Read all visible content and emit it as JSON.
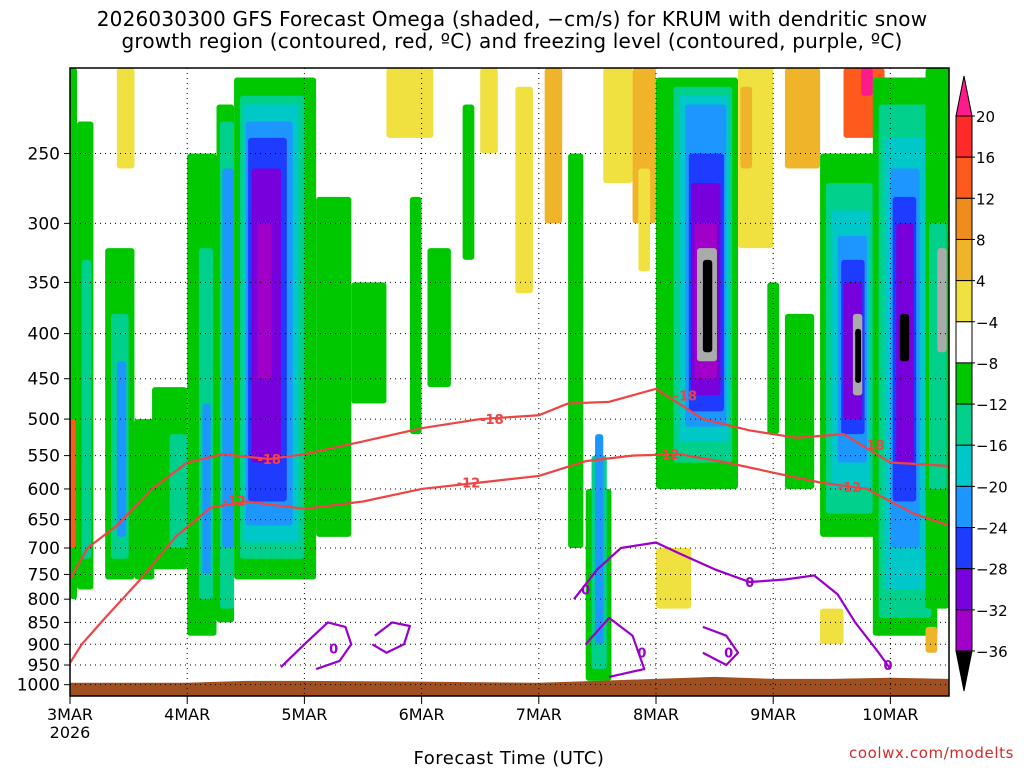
{
  "header": {
    "title_line1": "2026030300 GFS Forecast Omega (shaded, −cm/s) for KRUM with dendritic snow",
    "title_line2": "growth region (contoured, red, ºC) and freezing level (contoured, purple, ºC)"
  },
  "footer": {
    "credit": "coolwx.com/modelts"
  },
  "chart_data": {
    "type": "heatmap",
    "title": "2026030300 GFS Forecast Omega (shaded, −cm/s) for KRUM with dendritic snow growth region (contoured, red, ºC) and freezing level (contoured, purple, ºC)",
    "xlabel": "Forecast Time (UTC)",
    "ylabel": "",
    "x_range_days": [
      3.0,
      10.5
    ],
    "x_ticks": [
      {
        "day": 3,
        "label": "3MAR",
        "sublabel": "2026"
      },
      {
        "day": 4,
        "label": "4MAR"
      },
      {
        "day": 5,
        "label": "5MAR"
      },
      {
        "day": 6,
        "label": "6MAR"
      },
      {
        "day": 7,
        "label": "7MAR"
      },
      {
        "day": 8,
        "label": "8MAR"
      },
      {
        "day": 9,
        "label": "9MAR"
      },
      {
        "day": 10,
        "label": "10MAR"
      }
    ],
    "y_scale": "log-pressure (hPa), inverted",
    "y_range_hpa": [
      1030,
      200
    ],
    "y_ticks": [
      250,
      300,
      350,
      400,
      450,
      500,
      550,
      600,
      650,
      700,
      750,
      800,
      850,
      900,
      950,
      1000
    ],
    "grid": "dotted",
    "colorbar": {
      "labels": [
        "20",
        "16",
        "12",
        "8",
        "4",
        "−4",
        "−8",
        "−12",
        "−16",
        "−20",
        "−24",
        "−28",
        "−32",
        "−36"
      ],
      "colors": [
        "#ff1a8c",
        "#ff2a2a",
        "#ff5a1e",
        "#f08c1e",
        "#f0b42a",
        "#f0e040",
        "#ffffff",
        "#00c800",
        "#00d08c",
        "#00c8c8",
        "#1e96ff",
        "#1e3cff",
        "#7800dc",
        "#a000c8",
        "#aaaaaa",
        "#000000"
      ]
    },
    "omega_cells": [
      {
        "t0": 3.0,
        "t1": 3.06,
        "p0": 200,
        "p1": 800,
        "c": "#00c800"
      },
      {
        "t0": 3.0,
        "t1": 3.05,
        "p0": 500,
        "p1": 700,
        "c": "#ff5a1e"
      },
      {
        "t0": 3.06,
        "t1": 3.2,
        "p0": 230,
        "p1": 780,
        "c": "#00c800"
      },
      {
        "t0": 3.1,
        "t1": 3.18,
        "p0": 330,
        "p1": 720,
        "c": "#00d08c"
      },
      {
        "t0": 3.3,
        "t1": 3.55,
        "p0": 320,
        "p1": 760,
        "c": "#00c800"
      },
      {
        "t0": 3.35,
        "t1": 3.5,
        "p0": 380,
        "p1": 720,
        "c": "#00d08c"
      },
      {
        "t0": 3.4,
        "t1": 3.48,
        "p0": 430,
        "p1": 680,
        "c": "#1e96ff"
      },
      {
        "t0": 3.4,
        "t1": 3.55,
        "p0": 200,
        "p1": 260,
        "c": "#f0e040"
      },
      {
        "t0": 3.55,
        "t1": 3.72,
        "p0": 500,
        "p1": 760,
        "c": "#00c800"
      },
      {
        "t0": 3.7,
        "t1": 4.0,
        "p0": 460,
        "p1": 740,
        "c": "#00c800"
      },
      {
        "t0": 3.85,
        "t1": 4.0,
        "p0": 520,
        "p1": 700,
        "c": "#00d08c"
      },
      {
        "t0": 4.0,
        "t1": 4.25,
        "p0": 250,
        "p1": 880,
        "c": "#00c800"
      },
      {
        "t0": 4.1,
        "t1": 4.22,
        "p0": 320,
        "p1": 800,
        "c": "#00d08c"
      },
      {
        "t0": 4.13,
        "t1": 4.2,
        "p0": 480,
        "p1": 750,
        "c": "#1e96ff"
      },
      {
        "t0": 4.25,
        "t1": 4.4,
        "p0": 220,
        "p1": 850,
        "c": "#00c800"
      },
      {
        "t0": 4.28,
        "t1": 4.4,
        "p0": 230,
        "p1": 820,
        "c": "#00d08c"
      },
      {
        "t0": 4.3,
        "t1": 4.4,
        "p0": 260,
        "p1": 700,
        "c": "#1e96ff"
      },
      {
        "t0": 4.4,
        "t1": 5.1,
        "p0": 205,
        "p1": 760,
        "c": "#00c800"
      },
      {
        "t0": 4.45,
        "t1": 5.0,
        "p0": 215,
        "p1": 720,
        "c": "#00d08c"
      },
      {
        "t0": 4.48,
        "t1": 4.95,
        "p0": 220,
        "p1": 690,
        "c": "#00c8c8"
      },
      {
        "t0": 4.5,
        "t1": 4.9,
        "p0": 230,
        "p1": 660,
        "c": "#1e96ff"
      },
      {
        "t0": 4.52,
        "t1": 4.85,
        "p0": 240,
        "p1": 620,
        "c": "#1e3cff"
      },
      {
        "t0": 4.55,
        "t1": 4.8,
        "p0": 260,
        "p1": 560,
        "c": "#7800dc"
      },
      {
        "t0": 4.6,
        "t1": 4.72,
        "p0": 300,
        "p1": 450,
        "c": "#a000c8"
      },
      {
        "t0": 5.1,
        "t1": 5.4,
        "p0": 280,
        "p1": 680,
        "c": "#00c800"
      },
      {
        "t0": 5.4,
        "t1": 5.7,
        "p0": 350,
        "p1": 480,
        "c": "#00c800"
      },
      {
        "t0": 5.7,
        "t1": 6.1,
        "p0": 200,
        "p1": 240,
        "c": "#f0e040"
      },
      {
        "t0": 5.9,
        "t1": 6.0,
        "p0": 280,
        "p1": 520,
        "c": "#00c800"
      },
      {
        "t0": 6.05,
        "t1": 6.25,
        "p0": 320,
        "p1": 460,
        "c": "#00c800"
      },
      {
        "t0": 6.35,
        "t1": 6.45,
        "p0": 220,
        "p1": 330,
        "c": "#00c800"
      },
      {
        "t0": 6.5,
        "t1": 6.65,
        "p0": 200,
        "p1": 250,
        "c": "#f0e040"
      },
      {
        "t0": 6.8,
        "t1": 6.95,
        "p0": 210,
        "p1": 360,
        "c": "#f0e040"
      },
      {
        "t0": 7.05,
        "t1": 7.2,
        "p0": 200,
        "p1": 300,
        "c": "#f0b42a"
      },
      {
        "t0": 7.25,
        "t1": 7.38,
        "p0": 250,
        "p1": 700,
        "c": "#00c800"
      },
      {
        "t0": 7.4,
        "t1": 7.62,
        "p0": 600,
        "p1": 990,
        "c": "#00c800"
      },
      {
        "t0": 7.45,
        "t1": 7.58,
        "p0": 550,
        "p1": 960,
        "c": "#00d08c"
      },
      {
        "t0": 7.48,
        "t1": 7.55,
        "p0": 520,
        "p1": 900,
        "c": "#1e96ff"
      },
      {
        "t0": 7.55,
        "t1": 7.8,
        "p0": 200,
        "p1": 270,
        "c": "#f0e040"
      },
      {
        "t0": 7.8,
        "t1": 8.0,
        "p0": 200,
        "p1": 300,
        "c": "#f0b42a"
      },
      {
        "t0": 7.85,
        "t1": 7.95,
        "p0": 260,
        "p1": 340,
        "c": "#f0e040"
      },
      {
        "t0": 8.0,
        "t1": 8.7,
        "p0": 205,
        "p1": 600,
        "c": "#00c800"
      },
      {
        "t0": 8.15,
        "t1": 8.65,
        "p0": 210,
        "p1": 560,
        "c": "#00d08c"
      },
      {
        "t0": 8.2,
        "t1": 8.62,
        "p0": 215,
        "p1": 530,
        "c": "#00c8c8"
      },
      {
        "t0": 8.25,
        "t1": 8.6,
        "p0": 220,
        "p1": 510,
        "c": "#1e96ff"
      },
      {
        "t0": 8.28,
        "t1": 8.58,
        "p0": 250,
        "p1": 490,
        "c": "#1e3cff"
      },
      {
        "t0": 8.3,
        "t1": 8.55,
        "p0": 270,
        "p1": 470,
        "c": "#7800dc"
      },
      {
        "t0": 8.33,
        "t1": 8.52,
        "p0": 300,
        "p1": 450,
        "c": "#a000c8"
      },
      {
        "t0": 8.35,
        "t1": 8.52,
        "p0": 320,
        "p1": 430,
        "c": "#aaaaaa"
      },
      {
        "t0": 8.4,
        "t1": 8.48,
        "p0": 330,
        "p1": 420,
        "c": "#000000"
      },
      {
        "t0": 8.0,
        "t1": 8.3,
        "p0": 700,
        "p1": 820,
        "c": "#f0e040"
      },
      {
        "t0": 8.7,
        "t1": 9.0,
        "p0": 200,
        "p1": 320,
        "c": "#f0e040"
      },
      {
        "t0": 8.72,
        "t1": 8.82,
        "p0": 210,
        "p1": 260,
        "c": "#f0b42a"
      },
      {
        "t0": 8.95,
        "t1": 9.05,
        "p0": 350,
        "p1": 520,
        "c": "#00c800"
      },
      {
        "t0": 9.1,
        "t1": 9.4,
        "p0": 200,
        "p1": 260,
        "c": "#f0b42a"
      },
      {
        "t0": 9.1,
        "t1": 9.35,
        "p0": 380,
        "p1": 600,
        "c": "#00c800"
      },
      {
        "t0": 9.4,
        "t1": 9.9,
        "p0": 250,
        "p1": 680,
        "c": "#00c800"
      },
      {
        "t0": 9.45,
        "t1": 9.85,
        "p0": 270,
        "p1": 640,
        "c": "#00d08c"
      },
      {
        "t0": 9.5,
        "t1": 9.82,
        "p0": 290,
        "p1": 600,
        "c": "#00c8c8"
      },
      {
        "t0": 9.55,
        "t1": 9.8,
        "p0": 310,
        "p1": 560,
        "c": "#1e96ff"
      },
      {
        "t0": 9.58,
        "t1": 9.78,
        "p0": 330,
        "p1": 520,
        "c": "#1e3cff"
      },
      {
        "t0": 9.6,
        "t1": 9.76,
        "p0": 350,
        "p1": 500,
        "c": "#7800dc"
      },
      {
        "t0": 9.68,
        "t1": 9.76,
        "p0": 380,
        "p1": 470,
        "c": "#aaaaaa"
      },
      {
        "t0": 9.7,
        "t1": 9.75,
        "p0": 395,
        "p1": 455,
        "c": "#000000"
      },
      {
        "t0": 9.6,
        "t1": 9.95,
        "p0": 200,
        "p1": 240,
        "c": "#ff5a1e"
      },
      {
        "t0": 9.75,
        "t1": 9.85,
        "p0": 200,
        "p1": 215,
        "c": "#ff1a8c"
      },
      {
        "t0": 9.85,
        "t1": 10.4,
        "p0": 205,
        "p1": 880,
        "c": "#00c800"
      },
      {
        "t0": 9.9,
        "t1": 10.35,
        "p0": 220,
        "p1": 840,
        "c": "#00d08c"
      },
      {
        "t0": 9.95,
        "t1": 10.3,
        "p0": 240,
        "p1": 780,
        "c": "#00c8c8"
      },
      {
        "t0": 10.0,
        "t1": 10.25,
        "p0": 260,
        "p1": 700,
        "c": "#1e96ff"
      },
      {
        "t0": 10.02,
        "t1": 10.22,
        "p0": 280,
        "p1": 620,
        "c": "#1e3cff"
      },
      {
        "t0": 10.05,
        "t1": 10.2,
        "p0": 300,
        "p1": 560,
        "c": "#7800dc"
      },
      {
        "t0": 10.08,
        "t1": 10.16,
        "p0": 380,
        "p1": 430,
        "c": "#000000"
      },
      {
        "t0": 10.3,
        "t1": 10.5,
        "p0": 200,
        "p1": 820,
        "c": "#00c800"
      },
      {
        "t0": 10.33,
        "t1": 10.48,
        "p0": 300,
        "p1": 600,
        "c": "#00d08c"
      },
      {
        "t0": 10.4,
        "t1": 10.48,
        "p0": 320,
        "p1": 420,
        "c": "#aaaaaa"
      },
      {
        "t0": 9.4,
        "t1": 9.6,
        "p0": 820,
        "p1": 900,
        "c": "#f0e040"
      },
      {
        "t0": 10.3,
        "t1": 10.4,
        "p0": 860,
        "p1": 920,
        "c": "#f0b42a"
      }
    ],
    "contours": [
      {
        "label": "-18",
        "color": "#ee4444",
        "points": [
          [
            3.0,
            760
          ],
          [
            3.15,
            700
          ],
          [
            3.4,
            660
          ],
          [
            3.7,
            600
          ],
          [
            4.0,
            560
          ],
          [
            4.3,
            548
          ],
          [
            4.7,
            555
          ],
          [
            5.0,
            548
          ],
          [
            5.5,
            530
          ],
          [
            6.0,
            512
          ],
          [
            6.5,
            500
          ],
          [
            7.0,
            495
          ],
          [
            7.25,
            480
          ],
          [
            7.6,
            478
          ],
          [
            8.0,
            462
          ],
          [
            8.4,
            500
          ],
          [
            8.8,
            515
          ],
          [
            9.2,
            525
          ],
          [
            9.6,
            520
          ],
          [
            10.0,
            560
          ],
          [
            10.5,
            565
          ]
        ],
        "label_at": [
          [
            4.7,
            555
          ],
          [
            6.6,
            500
          ],
          [
            8.25,
            470
          ],
          [
            9.85,
            535
          ]
        ]
      },
      {
        "label": "-12",
        "color": "#ee4444",
        "points": [
          [
            3.0,
            945
          ],
          [
            3.1,
            900
          ],
          [
            3.3,
            840
          ],
          [
            3.6,
            760
          ],
          [
            3.9,
            680
          ],
          [
            4.2,
            630
          ],
          [
            4.5,
            620
          ],
          [
            5.0,
            632
          ],
          [
            5.5,
            620
          ],
          [
            6.0,
            600
          ],
          [
            6.5,
            590
          ],
          [
            7.0,
            580
          ],
          [
            7.4,
            558
          ],
          [
            7.8,
            550
          ],
          [
            8.2,
            548
          ],
          [
            8.6,
            560
          ],
          [
            9.0,
            575
          ],
          [
            9.4,
            590
          ],
          [
            9.8,
            600
          ],
          [
            10.2,
            640
          ],
          [
            10.5,
            660
          ]
        ],
        "label_at": [
          [
            4.4,
            618
          ],
          [
            6.4,
            590
          ],
          [
            8.1,
            548
          ],
          [
            9.65,
            597
          ]
        ]
      },
      {
        "label": "0",
        "color": "#9900cc",
        "points": [
          [
            7.3,
            800
          ],
          [
            7.5,
            740
          ],
          [
            7.7,
            700
          ],
          [
            8.0,
            690
          ],
          [
            8.2,
            710
          ],
          [
            8.5,
            740
          ],
          [
            8.8,
            765
          ],
          [
            9.1,
            760
          ],
          [
            9.35,
            752
          ],
          [
            9.55,
            790
          ],
          [
            9.7,
            850
          ],
          [
            9.9,
            920
          ],
          [
            10.0,
            960
          ]
        ],
        "label_at": [
          [
            7.4,
            780
          ],
          [
            8.8,
            765
          ],
          [
            9.98,
            950
          ]
        ]
      },
      {
        "label": "0",
        "color": "#9900cc",
        "points": [
          [
            4.8,
            955
          ],
          [
            5.0,
            900
          ],
          [
            5.2,
            850
          ],
          [
            5.35,
            860
          ],
          [
            5.4,
            900
          ],
          [
            5.3,
            940
          ],
          [
            5.1,
            960
          ]
        ],
        "label_at": [
          [
            5.25,
            910
          ]
        ]
      },
      {
        "label": "",
        "color": "#9900cc",
        "points": [
          [
            5.6,
            880
          ],
          [
            5.75,
            850
          ],
          [
            5.9,
            858
          ],
          [
            5.85,
            900
          ],
          [
            5.7,
            920
          ],
          [
            5.58,
            900
          ]
        ],
        "label_at": []
      },
      {
        "label": "0",
        "color": "#9900cc",
        "points": [
          [
            7.4,
            900
          ],
          [
            7.6,
            840
          ],
          [
            7.8,
            880
          ],
          [
            7.9,
            960
          ],
          [
            7.6,
            980
          ]
        ],
        "label_at": [
          [
            7.88,
            920
          ]
        ]
      },
      {
        "label": "0",
        "color": "#9900cc",
        "points": [
          [
            8.4,
            860
          ],
          [
            8.6,
            880
          ],
          [
            8.7,
            920
          ],
          [
            8.6,
            950
          ],
          [
            8.4,
            920
          ]
        ],
        "label_at": [
          [
            8.62,
            920
          ]
        ]
      }
    ],
    "terrain": {
      "color": "#a05020",
      "surface_pressure": [
        [
          3.0,
          995
        ],
        [
          4.0,
          995
        ],
        [
          4.5,
          990
        ],
        [
          5.0,
          990
        ],
        [
          6.0,
          992
        ],
        [
          7.0,
          995
        ],
        [
          7.5,
          990
        ],
        [
          8.0,
          985
        ],
        [
          8.5,
          980
        ],
        [
          9.0,
          985
        ],
        [
          9.5,
          985
        ],
        [
          10.0,
          982
        ],
        [
          10.5,
          985
        ]
      ],
      "bottom_pressure": 1030
    }
  }
}
